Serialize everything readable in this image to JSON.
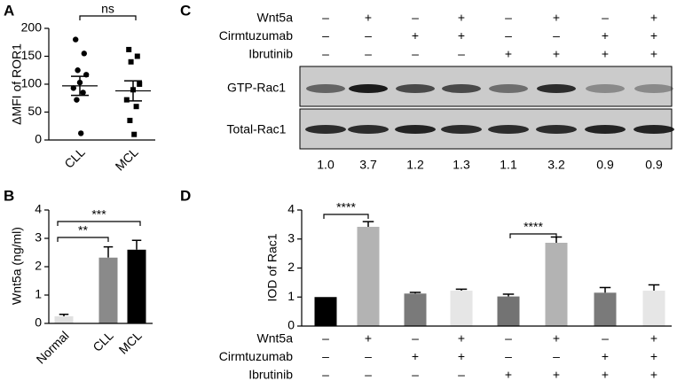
{
  "chart_data": [
    {
      "panel": "A",
      "type": "dot",
      "y_label": "ΔMFI of ROR1",
      "categories": [
        "CLL",
        "MCL"
      ],
      "values": [
        [
          180,
          155,
          125,
          117,
          103,
          93,
          85,
          72,
          12
        ],
        [
          162,
          150,
          140,
          100,
          90,
          72,
          60,
          35,
          10
        ]
      ],
      "means": [
        97,
        88
      ],
      "sems": [
        17,
        18
      ],
      "color": "#000000",
      "ylim": [
        0,
        200
      ],
      "yticks": [
        0,
        50,
        100,
        150,
        200
      ],
      "annotations": [
        "ns"
      ]
    },
    {
      "panel": "B",
      "type": "bar",
      "y_label": "Wnt5a (ng/ml)",
      "categories": [
        "Normal",
        "CLL",
        "MCL"
      ],
      "values": [
        0.25,
        2.32,
        2.6
      ],
      "errors": [
        0.07,
        0.38,
        0.33
      ],
      "colors": [
        "#e0e0e0",
        "#8a8a8a",
        "#000000"
      ],
      "ylim": [
        0,
        4
      ],
      "yticks": [
        0,
        1,
        2,
        3,
        4
      ],
      "annotations": [
        "**",
        "***"
      ]
    },
    {
      "panel": "D",
      "type": "bar",
      "y_label": "IOD of Rac1",
      "values": [
        1.0,
        3.42,
        1.12,
        1.22,
        1.02,
        2.87,
        1.15,
        1.22
      ],
      "errors": [
        0,
        0.18,
        0.04,
        0.05,
        0.08,
        0.2,
        0.18,
        0.2
      ],
      "colors": [
        "#000000",
        "#b3b3b3",
        "#7a7a7a",
        "#e6e6e6",
        "#737373",
        "#b3b3b3",
        "#7a7a7a",
        "#e6e6e6"
      ],
      "ylim": [
        0,
        4
      ],
      "yticks": [
        0,
        1,
        2,
        3,
        4
      ],
      "annotations": [
        "****",
        "****"
      ],
      "treatments": [
        {
          "name": "Wnt5a",
          "signs": [
            "–",
            "+",
            "–",
            "+",
            "–",
            "+",
            "–",
            "+"
          ]
        },
        {
          "name": "Cirmtuzumab",
          "signs": [
            "–",
            "–",
            "+",
            "+",
            "–",
            "–",
            "+",
            "+"
          ]
        },
        {
          "name": "Ibrutinib",
          "signs": [
            "–",
            "–",
            "–",
            "–",
            "+",
            "+",
            "+",
            "+"
          ]
        }
      ]
    }
  ],
  "blot": {
    "panel": "C",
    "treatments": [
      {
        "name": "Wnt5a",
        "signs": [
          "–",
          "+",
          "–",
          "+",
          "–",
          "+",
          "–",
          "+"
        ]
      },
      {
        "name": "Cirmtuzumab",
        "signs": [
          "–",
          "–",
          "+",
          "+",
          "–",
          "–",
          "+",
          "+"
        ]
      },
      {
        "name": "Ibrutinib",
        "signs": [
          "–",
          "–",
          "–",
          "–",
          "+",
          "+",
          "+",
          "+"
        ]
      }
    ],
    "bands": [
      "GTP-Rac1",
      "Total-Rac1"
    ],
    "quantification": [
      "1.0",
      "3.7",
      "1.2",
      "1.3",
      "1.1",
      "3.2",
      "0.9",
      "0.9"
    ]
  }
}
